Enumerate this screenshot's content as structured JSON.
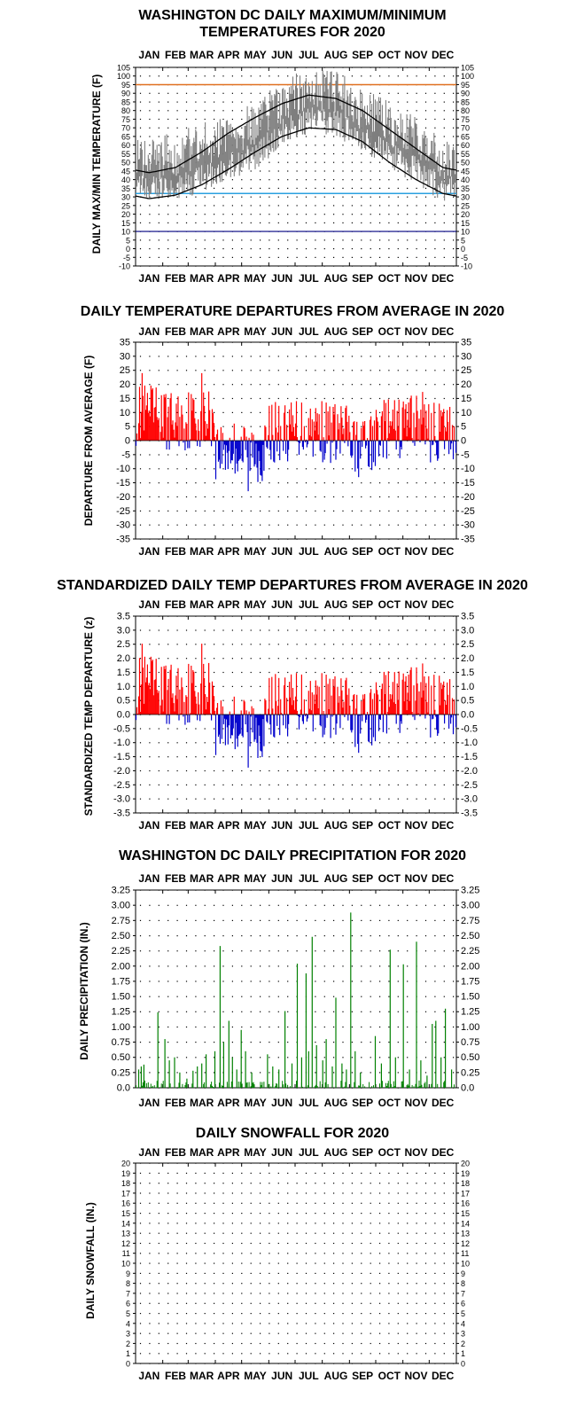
{
  "months": [
    "JAN",
    "FEB",
    "MAR",
    "APR",
    "MAY",
    "JUN",
    "JUL",
    "AUG",
    "SEP",
    "OCT",
    "NOV",
    "DEC"
  ],
  "colors": {
    "max_min_band": "#7f7f7f",
    "normal_lines": "#000000",
    "hot_line": "#e07020",
    "freeze_line": "#2aa0e0",
    "zero_line": "#000080",
    "positive": "#ff0000",
    "negative": "#0000cc",
    "precip": "#008000"
  },
  "chart_data": [
    {
      "id": "temps",
      "type": "line",
      "title_lines": [
        "WASHINGTON DC DAILY MAXIMUM/MINIMUM",
        "TEMPERATURES FOR 2020"
      ],
      "ylabel": "DAILY MAX/MIN TEMPERATURE (F)",
      "ylim": [
        -10,
        105
      ],
      "yticks": [
        -10,
        -5,
        0,
        5,
        10,
        15,
        20,
        25,
        30,
        35,
        40,
        45,
        50,
        55,
        60,
        65,
        70,
        75,
        80,
        85,
        90,
        95,
        100,
        105
      ],
      "ytick_labels": [
        "-10",
        "-5",
        "0",
        "5",
        "10",
        "15",
        "20",
        "25",
        "30",
        "35",
        "40",
        "45",
        "50",
        "55",
        "60",
        "65",
        "70",
        "75",
        "80",
        "85",
        "90",
        "95",
        "100",
        "105"
      ],
      "reference_lines": [
        95,
        32,
        10
      ],
      "normal_max_monthly": [
        44,
        47,
        56,
        67,
        76,
        84,
        89,
        87,
        80,
        69,
        58,
        47
      ],
      "normal_min_monthly": [
        29,
        31,
        37,
        46,
        56,
        65,
        70,
        69,
        62,
        50,
        40,
        32
      ],
      "max_sample_monthly": [
        50,
        55,
        60,
        68,
        72,
        86,
        92,
        90,
        81,
        72,
        64,
        50
      ],
      "min_sample_monthly": [
        34,
        35,
        41,
        47,
        54,
        67,
        75,
        73,
        63,
        54,
        45,
        35
      ],
      "grid": true
    },
    {
      "id": "departures",
      "type": "bar",
      "title_lines": [
        "DAILY TEMPERATURE DEPARTURES FROM AVERAGE IN 2020"
      ],
      "ylabel": "DEPARTURE FROM AVERAGE (F)",
      "ylim": [
        -35,
        35
      ],
      "yticks": [
        -35,
        -30,
        -25,
        -20,
        -15,
        -10,
        -5,
        0,
        5,
        10,
        15,
        20,
        25,
        30,
        35
      ],
      "ytick_labels": [
        "-35",
        "-30",
        "-25",
        "-20",
        "-15",
        "-10",
        "-5",
        "0",
        "5",
        "10",
        "15",
        "20",
        "25",
        "30",
        "35"
      ],
      "grid": true
    },
    {
      "id": "standardized",
      "type": "bar",
      "title_lines": [
        "STANDARDIZED DAILY TEMP DEPARTURES FROM AVERAGE IN 2020"
      ],
      "ylabel": "STANDARDIZED TEMP DEPARTURE (z)",
      "ylim": [
        -3.5,
        3.5
      ],
      "yticks": [
        -3.5,
        -3.0,
        -2.5,
        -2.0,
        -1.5,
        -1.0,
        -0.5,
        0.0,
        0.5,
        1.0,
        1.5,
        2.0,
        2.5,
        3.0,
        3.5
      ],
      "ytick_labels": [
        "-3.5",
        "-3.0",
        "-2.5",
        "-2.0",
        "-1.5",
        "-1.0",
        "-0.5",
        "0.0",
        "0.5",
        "1.0",
        "1.5",
        "2.0",
        "2.5",
        "3.0",
        "3.5"
      ],
      "grid": true
    },
    {
      "id": "precip",
      "type": "bar",
      "title_lines": [
        "WASHINGTON DC DAILY PRECIPITATION FOR 2020"
      ],
      "ylabel": "DAILY PRECIPITATION (IN.)",
      "ylim": [
        0,
        3.25
      ],
      "yticks": [
        0,
        0.25,
        0.5,
        0.75,
        1.0,
        1.25,
        1.5,
        1.75,
        2.0,
        2.25,
        2.5,
        2.75,
        3.0,
        3.25
      ],
      "ytick_labels": [
        "0.0",
        "0.25",
        "0.50",
        "0.75",
        "1.00",
        "1.25",
        "1.50",
        "1.75",
        "2.00",
        "2.25",
        "2.50",
        "2.75",
        "3.00",
        "3.25"
      ],
      "events": [
        {
          "day": 3,
          "value": 0.3
        },
        {
          "day": 6,
          "value": 0.35
        },
        {
          "day": 9,
          "value": 0.38
        },
        {
          "day": 25,
          "value": 1.24
        },
        {
          "day": 33,
          "value": 0.8
        },
        {
          "day": 38,
          "value": 0.45
        },
        {
          "day": 44,
          "value": 0.5
        },
        {
          "day": 50,
          "value": 0.25
        },
        {
          "day": 58,
          "value": 0.15
        },
        {
          "day": 65,
          "value": 0.28
        },
        {
          "day": 70,
          "value": 0.35
        },
        {
          "day": 75,
          "value": 0.4
        },
        {
          "day": 80,
          "value": 0.55
        },
        {
          "day": 90,
          "value": 0.6
        },
        {
          "day": 96,
          "value": 2.33
        },
        {
          "day": 100,
          "value": 0.75
        },
        {
          "day": 106,
          "value": 1.1
        },
        {
          "day": 110,
          "value": 0.5
        },
        {
          "day": 115,
          "value": 0.3
        },
        {
          "day": 120,
          "value": 0.95
        },
        {
          "day": 125,
          "value": 0.6
        },
        {
          "day": 132,
          "value": 0.25
        },
        {
          "day": 150,
          "value": 0.55
        },
        {
          "day": 156,
          "value": 0.35
        },
        {
          "day": 163,
          "value": 0.3
        },
        {
          "day": 170,
          "value": 1.26
        },
        {
          "day": 178,
          "value": 0.4
        },
        {
          "day": 184,
          "value": 2.04
        },
        {
          "day": 189,
          "value": 0.5
        },
        {
          "day": 194,
          "value": 1.88
        },
        {
          "day": 197,
          "value": 0.6
        },
        {
          "day": 201,
          "value": 2.48
        },
        {
          "day": 206,
          "value": 0.7
        },
        {
          "day": 213,
          "value": 0.45
        },
        {
          "day": 217,
          "value": 0.8
        },
        {
          "day": 224,
          "value": 0.35
        },
        {
          "day": 228,
          "value": 1.48
        },
        {
          "day": 235,
          "value": 0.4
        },
        {
          "day": 240,
          "value": 0.3
        },
        {
          "day": 245,
          "value": 2.88
        },
        {
          "day": 250,
          "value": 0.6
        },
        {
          "day": 256,
          "value": 0.25
        },
        {
          "day": 273,
          "value": 0.85
        },
        {
          "day": 280,
          "value": 0.4
        },
        {
          "day": 290,
          "value": 2.27
        },
        {
          "day": 296,
          "value": 0.5
        },
        {
          "day": 305,
          "value": 2.03
        },
        {
          "day": 312,
          "value": 0.3
        },
        {
          "day": 320,
          "value": 2.4
        },
        {
          "day": 325,
          "value": 0.45
        },
        {
          "day": 332,
          "value": 0.2
        },
        {
          "day": 338,
          "value": 1.05
        },
        {
          "day": 342,
          "value": 1.1
        },
        {
          "day": 348,
          "value": 0.5
        },
        {
          "day": 353,
          "value": 1.3
        },
        {
          "day": 360,
          "value": 0.3
        }
      ],
      "grid": true
    },
    {
      "id": "snow",
      "type": "bar",
      "title_lines": [
        "DAILY SNOWFALL FOR 2020"
      ],
      "ylabel": "DAILY SNOWFALL (IN.)",
      "ylim": [
        0,
        20
      ],
      "yticks": [
        0,
        1,
        2,
        3,
        4,
        5,
        6,
        7,
        8,
        9,
        10,
        11,
        12,
        13,
        14,
        15,
        16,
        17,
        18,
        19,
        20
      ],
      "ytick_labels": [
        "0",
        "1",
        "2",
        "3",
        "4",
        "5",
        "6",
        "7",
        "8",
        "9",
        "10",
        "11",
        "12",
        "13",
        "14",
        "15",
        "16",
        "17",
        "18",
        "19",
        "20"
      ],
      "events": [],
      "grid": true
    }
  ]
}
